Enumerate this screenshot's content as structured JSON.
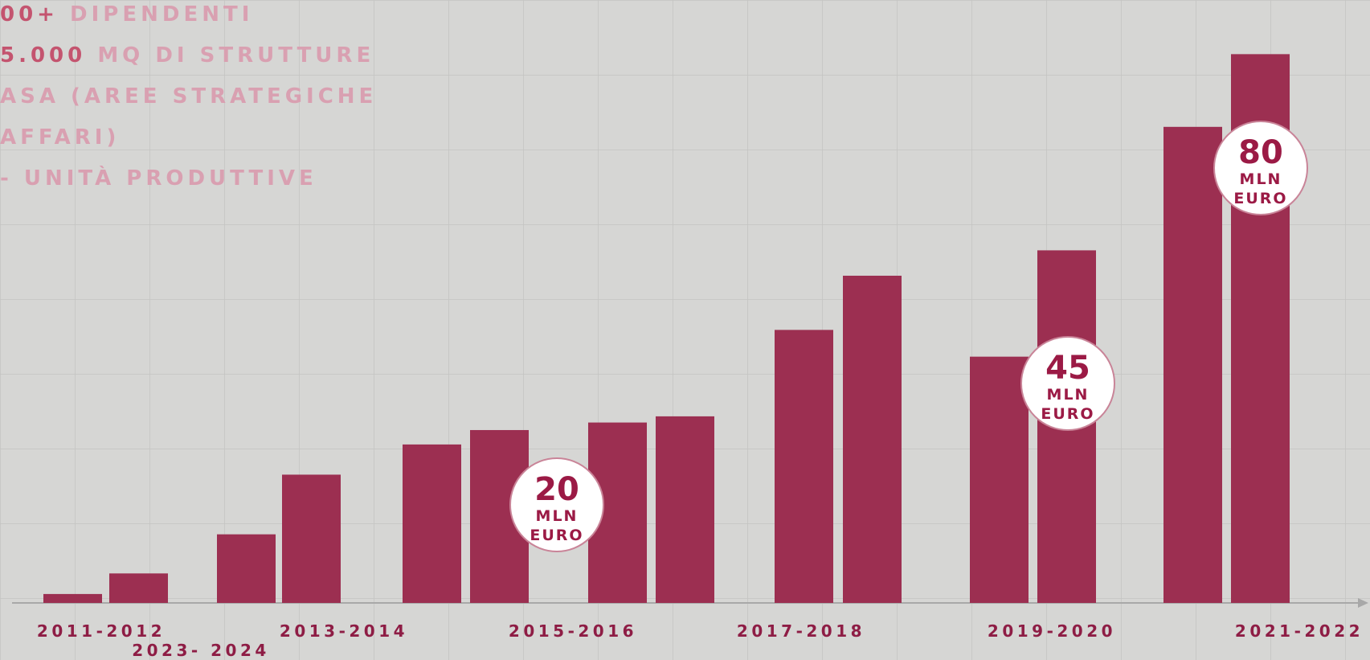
{
  "chart_data": {
    "type": "bar",
    "stats": [
      {
        "number": "00+",
        "text": "DIPENDENTI"
      },
      {
        "number": "5.000",
        "text": "MQ DI STRUTTURE"
      },
      {
        "number": "",
        "text": "ASA (AREE STRATEGICHE"
      },
      {
        "number": "",
        "text": "AFFARI)"
      },
      {
        "number": "",
        "text": "- UNITÀ PRODUTTIVE"
      }
    ],
    "values": [
      1.3,
      4.3,
      10.0,
      18.7,
      23.1,
      25.2,
      26.3,
      27.2,
      39.8,
      47.7,
      35.9,
      51.4,
      69.4,
      80
    ],
    "color": "#9c2f51",
    "axis_labels": [
      "2011-2012",
      "2013-2014",
      "2015-2016",
      "2017-2018",
      "2019-2020",
      "2021-2022",
      "2023- 2024"
    ],
    "annotations": [
      {
        "value": 20,
        "lines": [
          "MLN",
          "EURO"
        ]
      },
      {
        "value": 45,
        "lines": [
          "MLN",
          "EURO"
        ]
      },
      {
        "value": 80,
        "lines": [
          "MLN",
          "EURO"
        ]
      }
    ]
  }
}
